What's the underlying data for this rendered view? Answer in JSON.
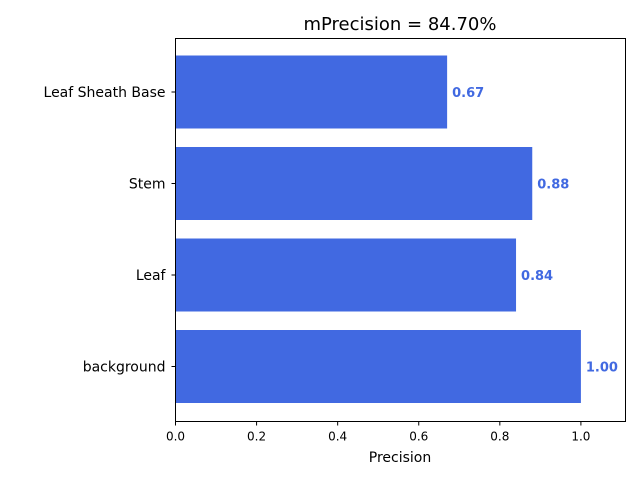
{
  "chart_data": {
    "type": "bar",
    "orientation": "horizontal",
    "title": "mPrecision = 84.70%",
    "xlabel": "Precision",
    "ylabel": "",
    "categories": [
      "background",
      "Leaf",
      "Stem",
      "Leaf Sheath Base"
    ],
    "values": [
      1.0,
      0.84,
      0.88,
      0.67
    ],
    "value_labels": [
      "1.00",
      "0.84",
      "0.88",
      "0.67"
    ],
    "xlim": [
      0,
      1.11
    ],
    "xticks": [
      0.0,
      0.2,
      0.4,
      0.6,
      0.8,
      1.0
    ],
    "xtick_labels": [
      "0.0",
      "0.2",
      "0.4",
      "0.6",
      "0.8",
      "1.0"
    ],
    "grid": false,
    "legend": "none",
    "colors": {
      "bar": "#4169e1",
      "label": "#4169e1",
      "axis": "#000000"
    }
  }
}
